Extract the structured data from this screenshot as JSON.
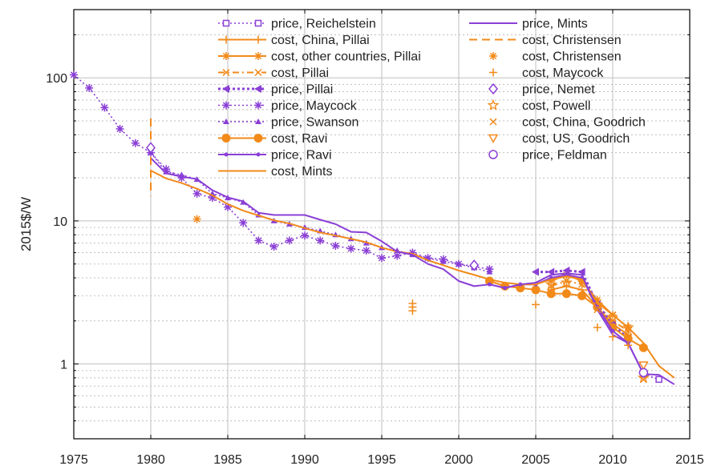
{
  "chart_data": {
    "type": "line",
    "title": "",
    "xlabel": "",
    "ylabel": "2015$/W",
    "xlim": [
      1975,
      2015
    ],
    "ylim": [
      0.3,
      300
    ],
    "yscale": "log",
    "grid": true,
    "legend_placement": "top-center",
    "x_ticks": [
      "1975",
      "1980",
      "1985",
      "1990",
      "1995",
      "2000",
      "2005",
      "2010",
      "2015"
    ],
    "y_ticks": [
      {
        "value": 1,
        "label": "1"
      },
      {
        "value": 10,
        "label": "10"
      },
      {
        "value": 100,
        "label": "100"
      }
    ],
    "colors": {
      "purple": "#8a3fd6",
      "orange": "#f28a1a",
      "grid": "#bfbfbf"
    },
    "series": [
      {
        "name": "price, Reichelstein",
        "color": "#8a3fd6",
        "marker": "square-open",
        "line": "dotted",
        "points": [
          [
            2012,
            0.85
          ],
          [
            2013,
            0.78
          ]
        ]
      },
      {
        "name": "cost, China, Pillai",
        "color": "#f28a1a",
        "marker": "plus",
        "line": "solid",
        "points": [
          [
            2006,
            3.3
          ],
          [
            2007,
            3.5
          ],
          [
            2008,
            3.3
          ],
          [
            2009,
            2.5
          ],
          [
            2010,
            1.9
          ],
          [
            2011,
            1.6
          ]
        ]
      },
      {
        "name": "cost, other countries, Pillai",
        "color": "#f28a1a",
        "marker": "asterisk",
        "line": "solid",
        "points": [
          [
            2006,
            3.8
          ],
          [
            2007,
            4.2
          ],
          [
            2008,
            3.8
          ],
          [
            2009,
            2.8
          ],
          [
            2010,
            2.2
          ],
          [
            2011,
            1.8
          ]
        ]
      },
      {
        "name": "cost, Pillai",
        "color": "#f28a1a",
        "marker": "cross",
        "line": "dashdot",
        "points": [
          [
            2006,
            3.5
          ],
          [
            2007,
            3.8
          ],
          [
            2008,
            3.6
          ],
          [
            2009,
            2.6
          ],
          [
            2010,
            2.0
          ],
          [
            2011,
            1.7
          ]
        ]
      },
      {
        "name": "price, Pillai",
        "color": "#8a3fd6",
        "marker": "triangle-left",
        "line": "dotted-bold",
        "points": [
          [
            2005,
            4.4
          ],
          [
            2006,
            4.4
          ],
          [
            2007,
            4.5
          ],
          [
            2008,
            4.4
          ],
          [
            2009,
            2.6
          ],
          [
            2010,
            1.9
          ],
          [
            2011,
            1.5
          ]
        ]
      },
      {
        "name": "price, Maycock",
        "color": "#8a3fd6",
        "marker": "asterisk",
        "line": "dotted",
        "points": [
          [
            1975,
            105
          ],
          [
            1976,
            85
          ],
          [
            1977,
            62
          ],
          [
            1978,
            44
          ],
          [
            1979,
            35
          ],
          [
            1980,
            30
          ],
          [
            1981,
            23
          ],
          [
            1982,
            20
          ],
          [
            1983,
            15.5
          ],
          [
            1984,
            14.5
          ],
          [
            1985,
            12.5
          ],
          [
            1986,
            9.7
          ],
          [
            1987,
            7.3
          ],
          [
            1988,
            6.6
          ],
          [
            1989,
            7.3
          ],
          [
            1990,
            7.9
          ],
          [
            1991,
            7.3
          ],
          [
            1992,
            6.7
          ],
          [
            1993,
            6.4
          ],
          [
            1994,
            6.2
          ],
          [
            1995,
            5.5
          ],
          [
            1996,
            5.7
          ],
          [
            1997,
            6.0
          ],
          [
            1998,
            5.5
          ],
          [
            1999,
            5.4
          ],
          [
            2000,
            5.0
          ],
          [
            2001,
            4.8
          ],
          [
            2002,
            4.6
          ]
        ]
      },
      {
        "name": "price, Swanson",
        "color": "#8a3fd6",
        "marker": "triangle",
        "line": "dotted",
        "points": [
          [
            1980,
            30
          ],
          [
            1981,
            22
          ],
          [
            1982,
            21
          ],
          [
            1983,
            19.5
          ],
          [
            1984,
            15.5
          ],
          [
            1985,
            14.5
          ],
          [
            1986,
            13.5
          ],
          [
            1987,
            11
          ],
          [
            1988,
            10
          ],
          [
            1989,
            9.5
          ],
          [
            1990,
            9
          ],
          [
            1991,
            8.5
          ],
          [
            1992,
            8
          ],
          [
            1993,
            7.5
          ],
          [
            1994,
            7
          ],
          [
            1995,
            6.5
          ],
          [
            1996,
            6.2
          ],
          [
            1997,
            5.8
          ],
          [
            1998,
            5.5
          ],
          [
            1999,
            5.2
          ],
          [
            2000,
            5.0
          ],
          [
            2001,
            4.7
          ],
          [
            2002,
            4.4
          ]
        ]
      },
      {
        "name": "cost, Ravi",
        "color": "#f28a1a",
        "marker": "circle-filled",
        "line": "solid",
        "points": [
          [
            2002,
            3.8
          ],
          [
            2003,
            3.5
          ],
          [
            2004,
            3.4
          ],
          [
            2005,
            3.3
          ],
          [
            2006,
            3.1
          ],
          [
            2007,
            3.1
          ],
          [
            2008,
            3.0
          ],
          [
            2009,
            2.5
          ],
          [
            2010,
            1.8
          ],
          [
            2011,
            1.5
          ],
          [
            2012,
            1.3
          ]
        ]
      },
      {
        "name": "price, Ravi",
        "color": "#8a3fd6",
        "marker": "dot",
        "line": "solid",
        "points": [
          [
            2002,
            3.6
          ],
          [
            2003,
            3.4
          ],
          [
            2004,
            3.6
          ],
          [
            2005,
            3.6
          ],
          [
            2006,
            4.0
          ],
          [
            2007,
            4.2
          ],
          [
            2008,
            4.0
          ],
          [
            2009,
            2.5
          ],
          [
            2010,
            1.7
          ],
          [
            2011,
            1.4
          ],
          [
            2012,
            0.85
          ]
        ]
      },
      {
        "name": "cost, Mints",
        "color": "#f28a1a",
        "marker": "none",
        "line": "solid",
        "points": [
          [
            1980,
            22.5
          ],
          [
            1981,
            19.8
          ],
          [
            1982,
            18.4
          ],
          [
            1983,
            16.8
          ],
          [
            1984,
            15.1
          ],
          [
            1985,
            13.1
          ],
          [
            1986,
            11.8
          ],
          [
            1987,
            10.9
          ],
          [
            1988,
            10.1
          ],
          [
            1989,
            9.6
          ],
          [
            1990,
            8.9
          ],
          [
            1991,
            8.3
          ],
          [
            1992,
            7.9
          ],
          [
            1993,
            7.5
          ],
          [
            1994,
            7.1
          ],
          [
            1995,
            6.5
          ],
          [
            1996,
            6.1
          ],
          [
            1997,
            5.9
          ],
          [
            1998,
            5.3
          ],
          [
            1999,
            4.9
          ],
          [
            2000,
            4.5
          ],
          [
            2001,
            4.2
          ],
          [
            2002,
            3.9
          ],
          [
            2003,
            3.7
          ],
          [
            2004,
            3.6
          ],
          [
            2005,
            3.6
          ],
          [
            2006,
            3.9
          ],
          [
            2007,
            4.1
          ],
          [
            2008,
            3.9
          ],
          [
            2009,
            2.7
          ],
          [
            2010,
            2.2
          ],
          [
            2011,
            1.8
          ],
          [
            2012,
            1.4
          ],
          [
            2013,
            0.97
          ],
          [
            2014,
            0.8
          ]
        ]
      },
      {
        "name": "price, Mints",
        "color": "#8a3fd6",
        "marker": "none",
        "line": "solid",
        "points": [
          [
            1980,
            27.5
          ],
          [
            1981,
            21.5
          ],
          [
            1982,
            20.4
          ],
          [
            1983,
            19.6
          ],
          [
            1984,
            16.4
          ],
          [
            1985,
            14.6
          ],
          [
            1986,
            13.7
          ],
          [
            1987,
            11.4
          ],
          [
            1988,
            11.0
          ],
          [
            1989,
            11.0
          ],
          [
            1990,
            11.0
          ],
          [
            1991,
            10.2
          ],
          [
            1992,
            9.5
          ],
          [
            1993,
            8.4
          ],
          [
            1994,
            8.3
          ],
          [
            1995,
            7.2
          ],
          [
            1996,
            6.1
          ],
          [
            1997,
            5.8
          ],
          [
            1998,
            5.0
          ],
          [
            1999,
            4.6
          ],
          [
            2000,
            3.8
          ],
          [
            2001,
            3.5
          ],
          [
            2002,
            3.6
          ],
          [
            2003,
            3.4
          ],
          [
            2004,
            3.6
          ],
          [
            2005,
            3.7
          ],
          [
            2006,
            4.2
          ],
          [
            2007,
            4.3
          ],
          [
            2008,
            4.2
          ],
          [
            2009,
            2.4
          ],
          [
            2010,
            1.6
          ],
          [
            2011,
            1.4
          ],
          [
            2012,
            0.85
          ],
          [
            2013,
            0.84
          ],
          [
            2014,
            0.72
          ]
        ]
      },
      {
        "name": "cost, Christensen",
        "color": "#f28a1a",
        "marker": "none",
        "line": "dashed",
        "points": [
          [
            1980,
            52
          ],
          [
            1980,
            15
          ]
        ]
      },
      {
        "name": "cost, Christensen",
        "color": "#f28a1a",
        "marker": "asterisk",
        "line": "none",
        "points": [
          [
            1983,
            10.3
          ]
        ]
      },
      {
        "name": "cost, Maycock",
        "color": "#f28a1a",
        "marker": "plus",
        "line": "none",
        "points": [
          [
            1997,
            2.65
          ],
          [
            1997,
            2.5
          ],
          [
            1997,
            2.35
          ],
          [
            2005,
            2.6
          ],
          [
            2009,
            1.8
          ],
          [
            2010,
            1.55
          ],
          [
            2011,
            1.35
          ]
        ]
      },
      {
        "name": "price, Nemet",
        "color": "#8a3fd6",
        "marker": "diamond-open",
        "line": "none",
        "points": [
          [
            1980,
            32.5
          ],
          [
            2001,
            4.9
          ]
        ]
      },
      {
        "name": "cost, Powell",
        "color": "#f28a1a",
        "marker": "star",
        "line": "none",
        "points": [
          [
            2006,
            3.6
          ],
          [
            2007,
            3.7
          ],
          [
            2009,
            2.6
          ],
          [
            2010,
            2.1
          ],
          [
            2011,
            1.8
          ],
          [
            2012,
            0.8
          ]
        ]
      },
      {
        "name": "cost, China, Goodrich",
        "color": "#f28a1a",
        "marker": "cross",
        "line": "none",
        "points": [
          [
            2009,
            2.4
          ],
          [
            2010,
            2.2
          ],
          [
            2012,
            0.78
          ]
        ]
      },
      {
        "name": "cost, US, Goodrich",
        "color": "#f28a1a",
        "marker": "triangle-down-open",
        "line": "none",
        "points": [
          [
            2012,
            0.98
          ]
        ]
      },
      {
        "name": "price, Feldman",
        "color": "#8a3fd6",
        "marker": "circle-open",
        "line": "none",
        "points": [
          [
            2012,
            0.87
          ]
        ]
      }
    ]
  }
}
